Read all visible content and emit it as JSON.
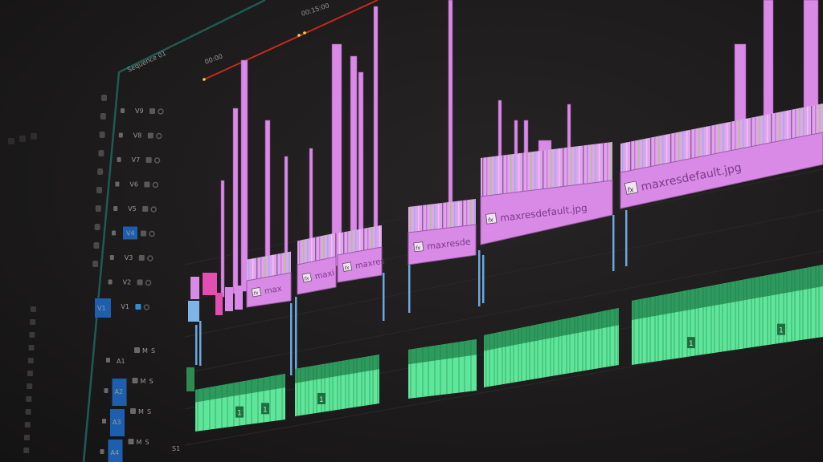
{
  "ruler": {
    "timecode_start": "00:00",
    "timecode_mid": "00:15:00"
  },
  "sequence_tab": "Sequence 01",
  "video_tracks": [
    "V9",
    "V8",
    "V7",
    "V6",
    "V5",
    "V4",
    "V3",
    "V2",
    "V1"
  ],
  "audio_tracks": [
    "A1",
    "A2",
    "A3",
    "A4"
  ],
  "track_buttons": {
    "mute": "M",
    "solo": "S"
  },
  "master_label": "S1",
  "video_clips": [
    {
      "label": "max"
    },
    {
      "label": "maxi"
    },
    {
      "label": "maxres"
    },
    {
      "label": "maxresde"
    },
    {
      "label": "maxresdefault.jpg"
    },
    {
      "label": "maxresdefault.jpg"
    }
  ],
  "audio_clip_marker": "1",
  "fx_badge": "fx",
  "colors": {
    "video_clip": "#d98ae6",
    "audio_clip": "#4fd98a",
    "playhead_range": "#c8281e",
    "track_target": "#1d5fae",
    "panel_border": "#1f5a55",
    "selected_track": "#2a8fd0"
  }
}
